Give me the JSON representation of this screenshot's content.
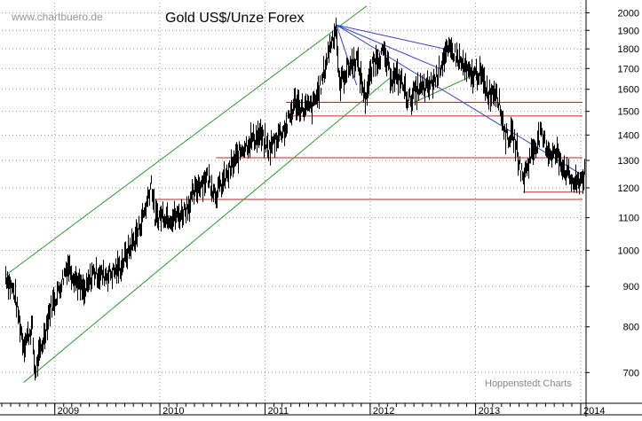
{
  "watermark_left": "www.chartbuero.de",
  "watermark_right": "Hoppenstedt Charts",
  "colors": {
    "background": "#ffffff",
    "grid": "#999999",
    "price": "#000000",
    "channel": "#2e9a2e",
    "trend": "#2f3fd8",
    "support": "#d22020"
  },
  "chart_data": {
    "type": "line",
    "title": "Gold US$/Unze Forex",
    "xlabel": "",
    "ylabel": "",
    "y_scale": "log",
    "ylim": [
      640,
      2060
    ],
    "y_axis_position": "right",
    "grid": true,
    "x_axis_tick_labels": [
      "2009",
      "2010",
      "2011",
      "2012",
      "2013",
      "2014"
    ],
    "y_axis_tick_labels": [
      "700",
      "800",
      "900",
      "1000",
      "1100",
      "1200",
      "1300",
      "1400",
      "1500",
      "1600",
      "1700",
      "1800",
      "1900",
      "2000"
    ],
    "series": [
      {
        "style": "daily high-low price bars",
        "points": [
          [
            "2008-07",
            930
          ],
          [
            "2008-08",
            880
          ],
          [
            "2008-09",
            760
          ],
          [
            "2008-10",
            800
          ],
          [
            "2008-10-24",
            700
          ],
          [
            "2008-11",
            750
          ],
          [
            "2008-12",
            840
          ],
          [
            "2009-01",
            890
          ],
          [
            "2009-02",
            960
          ],
          [
            "2009-03",
            920
          ],
          [
            "2009-04",
            880
          ],
          [
            "2009-05",
            940
          ],
          [
            "2009-06",
            930
          ],
          [
            "2009-07",
            935
          ],
          [
            "2009-08",
            950
          ],
          [
            "2009-09",
            1000
          ],
          [
            "2009-10",
            1050
          ],
          [
            "2009-11",
            1140
          ],
          [
            "2009-12-03",
            1225
          ],
          [
            "2009-12",
            1100
          ],
          [
            "2010-01",
            1110
          ],
          [
            "2010-02",
            1100
          ],
          [
            "2010-03",
            1110
          ],
          [
            "2010-04",
            1150
          ],
          [
            "2010-05",
            1210
          ],
          [
            "2010-06",
            1240
          ],
          [
            "2010-07",
            1180
          ],
          [
            "2010-08",
            1230
          ],
          [
            "2010-09",
            1290
          ],
          [
            "2010-10",
            1350
          ],
          [
            "2010-11",
            1380
          ],
          [
            "2010-12",
            1400
          ],
          [
            "2011-01",
            1340
          ],
          [
            "2011-02",
            1400
          ],
          [
            "2011-03",
            1430
          ],
          [
            "2011-04",
            1540
          ],
          [
            "2011-05",
            1510
          ],
          [
            "2011-06",
            1520
          ],
          [
            "2011-07",
            1620
          ],
          [
            "2011-08",
            1820
          ],
          [
            "2011-09-06",
            1920
          ],
          [
            "2011-09",
            1620
          ],
          [
            "2011-10",
            1700
          ],
          [
            "2011-11",
            1750
          ],
          [
            "2011-12",
            1560
          ],
          [
            "2012-01",
            1740
          ],
          [
            "2012-02",
            1780
          ],
          [
            "2012-03",
            1660
          ],
          [
            "2012-04",
            1650
          ],
          [
            "2012-05",
            1550
          ],
          [
            "2012-06",
            1600
          ],
          [
            "2012-07",
            1600
          ],
          [
            "2012-08",
            1650
          ],
          [
            "2012-09",
            1770
          ],
          [
            "2012-10",
            1790
          ],
          [
            "2012-11",
            1720
          ],
          [
            "2012-12",
            1660
          ],
          [
            "2013-01",
            1680
          ],
          [
            "2013-02",
            1580
          ],
          [
            "2013-03",
            1600
          ],
          [
            "2013-04",
            1400
          ],
          [
            "2013-05",
            1390
          ],
          [
            "2013-06",
            1230
          ],
          [
            "2013-07",
            1330
          ],
          [
            "2013-08",
            1400
          ],
          [
            "2013-09",
            1330
          ],
          [
            "2013-10",
            1320
          ],
          [
            "2013-11",
            1250
          ],
          [
            "2013-12",
            1210
          ],
          [
            "2014-01",
            1250
          ]
        ]
      }
    ],
    "annotations": [
      {
        "kind": "channel-upper",
        "color": "green",
        "from": [
          "2008-07",
          930
        ],
        "to": [
          "2011-12-20",
          2040
        ]
      },
      {
        "kind": "channel-lower",
        "color": "green",
        "from": [
          "2008-09",
          680
        ],
        "to": [
          "2012-03",
          1660
        ]
      },
      {
        "kind": "trend-support",
        "color": "green",
        "from": [
          "2012-05",
          1530
        ],
        "to": [
          "2013-01",
          1680
        ]
      },
      {
        "kind": "trend",
        "color": "blue",
        "from": [
          "2011-09-06",
          1930
        ],
        "to": [
          "2012-10",
          1790
        ]
      },
      {
        "kind": "trend",
        "color": "blue",
        "from": [
          "2011-09-06",
          1930
        ],
        "to": [
          "2012-09-15",
          1690
        ]
      },
      {
        "kind": "trend",
        "color": "blue",
        "from": [
          "2011-09-06",
          1930
        ],
        "to": [
          "2011-11",
          1620
        ]
      },
      {
        "kind": "trend",
        "color": "blue",
        "from": [
          "2011-09-06",
          1930
        ],
        "to": [
          "2014-01",
          1240
        ]
      },
      {
        "kind": "horizontal",
        "color": "red",
        "y": 1540
      },
      {
        "kind": "horizontal",
        "color": "red",
        "y": 1480
      },
      {
        "kind": "horizontal",
        "color": "red",
        "y": 1310
      },
      {
        "kind": "horizontal",
        "color": "red",
        "y": 1185
      },
      {
        "kind": "horizontal",
        "color": "red",
        "y": 1160
      }
    ]
  }
}
